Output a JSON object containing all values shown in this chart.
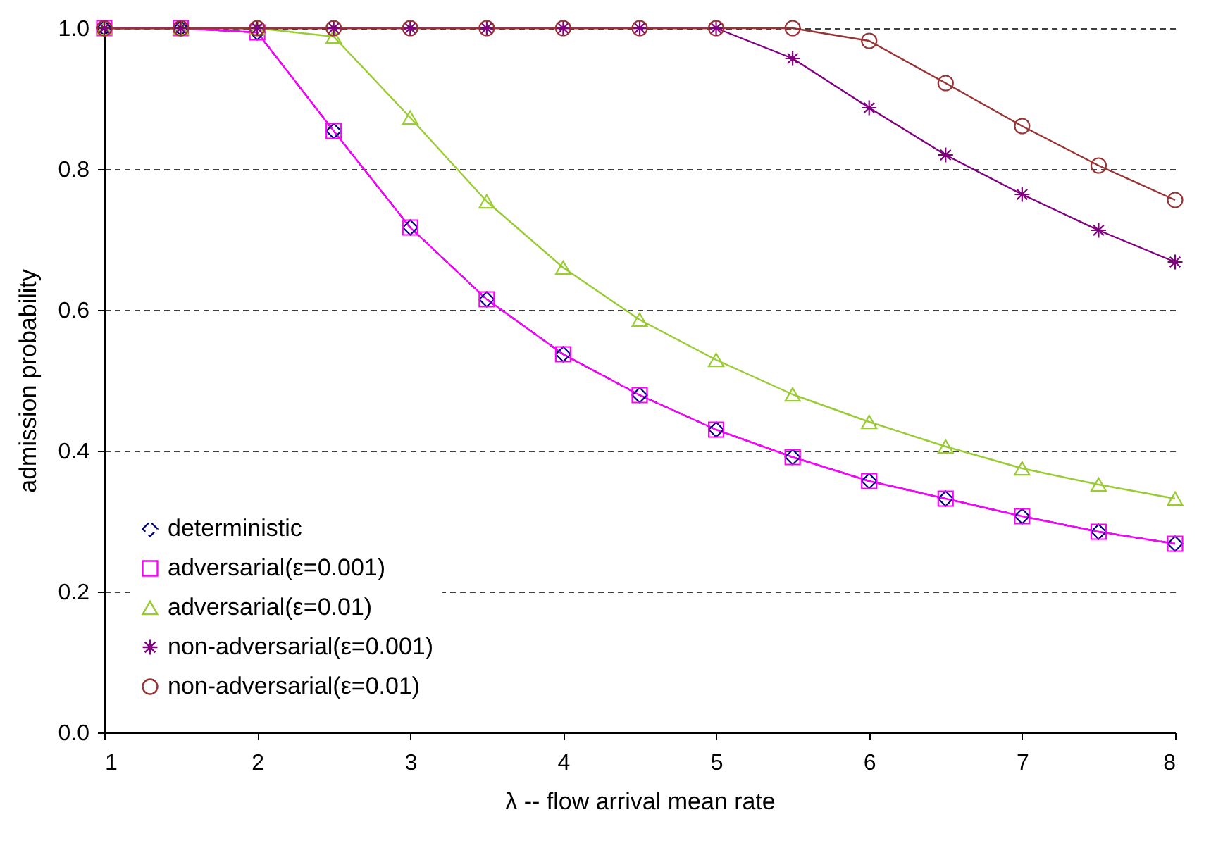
{
  "chart_data": {
    "type": "line",
    "xlabel": "λ -- flow arrival mean rate",
    "ylabel": "admission probability",
    "x": [
      1,
      1.5,
      2,
      2.5,
      3,
      3.5,
      4,
      4.5,
      5,
      5.5,
      6,
      6.5,
      7,
      7.5,
      8
    ],
    "xlim": [
      1,
      8
    ],
    "xticks": [
      1,
      2,
      3,
      4,
      5,
      6,
      7,
      8
    ],
    "ylim": [
      0,
      1
    ],
    "yticks": [
      {
        "value": 0,
        "label": "0.0"
      },
      0.2,
      0.4,
      0.6,
      0.8,
      {
        "value": 1,
        "label": "1.0"
      }
    ],
    "grid": "y",
    "legend": "bottom left",
    "series": [
      {
        "name": "deterministic",
        "color": "#000080",
        "marker": "diamond",
        "line_style": "dashed",
        "values": [
          1,
          1,
          0.994,
          0.854,
          0.717,
          0.615,
          0.537,
          0.479,
          0.43,
          0.391,
          0.357,
          0.332,
          0.307,
          0.285,
          0.268
        ]
      },
      {
        "name": "adversarial(ε=0.001)",
        "color": "#ff00ff",
        "marker": "square",
        "line_style": "solid",
        "values": [
          1,
          1,
          0.994,
          0.854,
          0.717,
          0.615,
          0.537,
          0.479,
          0.43,
          0.391,
          0.357,
          0.332,
          0.307,
          0.285,
          0.268
        ]
      },
      {
        "name": "adversarial(ε=0.01)",
        "color": "#99cc33",
        "marker": "triangle",
        "line_style": "solid",
        "values": [
          1,
          1,
          1,
          0.988,
          0.873,
          0.754,
          0.66,
          0.586,
          0.529,
          0.48,
          0.441,
          0.406,
          0.375,
          0.352,
          0.332
        ]
      },
      {
        "name": "non-adversarial(ε=0.001)",
        "color": "#800080",
        "marker": "cross",
        "line_style": "solid",
        "values": [
          1,
          1,
          1,
          1,
          1,
          1,
          1,
          1,
          1,
          0.957,
          0.887,
          0.82,
          0.764,
          0.713,
          0.668
        ]
      },
      {
        "name": "non-adversarial(ε=0.01)",
        "color": "#993333",
        "marker": "circle",
        "line_style": "solid",
        "values": [
          1,
          1,
          1,
          1,
          1,
          1,
          1,
          1,
          1,
          1,
          0.982,
          0.922,
          0.861,
          0.805,
          0.756
        ]
      }
    ]
  }
}
